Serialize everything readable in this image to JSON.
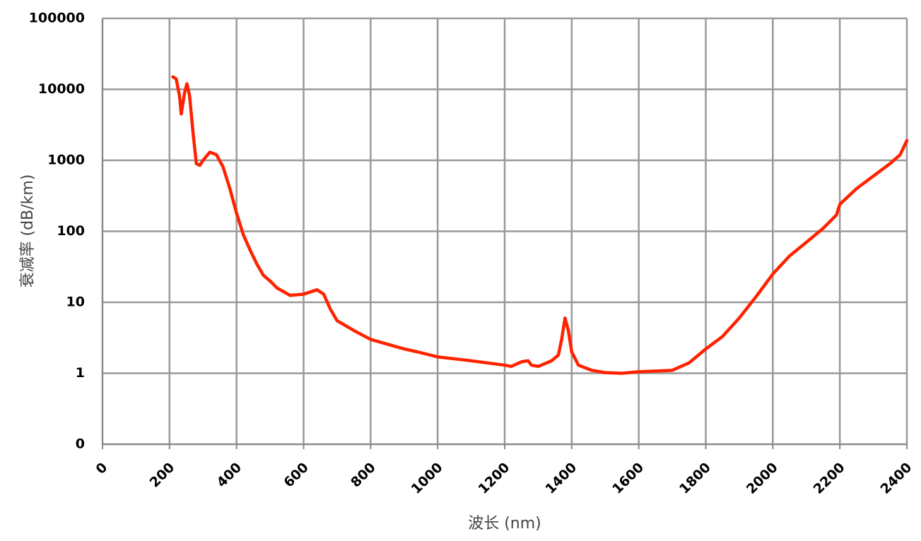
{
  "chart_data": {
    "type": "line",
    "x_label": "波长 (nm)",
    "y_label": "衰减率 (dB/km)",
    "x": [
      210,
      220,
      230,
      235,
      245,
      252,
      260,
      270,
      280,
      290,
      300,
      320,
      340,
      360,
      380,
      400,
      420,
      440,
      460,
      480,
      500,
      520,
      560,
      600,
      640,
      660,
      680,
      700,
      750,
      800,
      900,
      940,
      1000,
      1100,
      1200,
      1220,
      1250,
      1270,
      1280,
      1300,
      1340,
      1360,
      1370,
      1380,
      1390,
      1400,
      1420,
      1460,
      1500,
      1550,
      1600,
      1700,
      1750,
      1800,
      1850,
      1900,
      1950,
      2000,
      2050,
      2100,
      2150,
      2190,
      2200,
      2250,
      2300,
      2350,
      2380,
      2400
    ],
    "series": [
      {
        "name": "衰减率",
        "color": "#ff2200",
        "values": [
          15000,
          14000,
          8000,
          4500,
          9000,
          12000,
          8000,
          2500,
          900,
          850,
          1000,
          1300,
          1200,
          800,
          400,
          180,
          90,
          55,
          35,
          24,
          20,
          16,
          12.5,
          13,
          15,
          13,
          8,
          5.5,
          4,
          3,
          2.2,
          2,
          1.7,
          1.5,
          1.3,
          1.25,
          1.45,
          1.5,
          1.3,
          1.25,
          1.5,
          1.8,
          3,
          6,
          4,
          2,
          1.3,
          1.1,
          1.02,
          1.0,
          1.05,
          1.1,
          1.4,
          2.2,
          3.3,
          6,
          12,
          25,
          45,
          70,
          110,
          170,
          240,
          400,
          600,
          900,
          1200,
          1900
        ]
      }
    ],
    "xlim": [
      0,
      2400
    ],
    "xticks": [
      0,
      200,
      400,
      600,
      800,
      1000,
      1200,
      1400,
      1600,
      1800,
      2000,
      2200,
      2400
    ],
    "ylim": [
      0.1,
      100000
    ],
    "yticks": [
      {
        "value": 0.1,
        "label": "0"
      },
      1,
      10,
      100,
      1000,
      10000,
      100000
    ],
    "y_scale": "log",
    "grid": true
  }
}
